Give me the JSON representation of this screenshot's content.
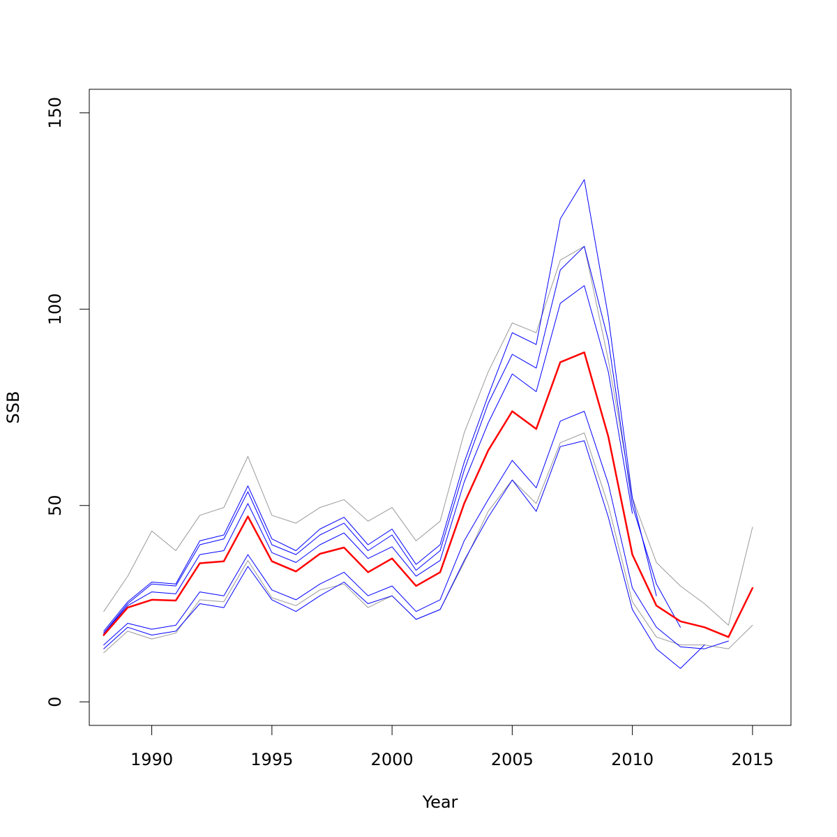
{
  "chart_data": {
    "type": "line",
    "title": "",
    "xlabel": "Year",
    "ylabel": "SSB",
    "xlim": [
      1987.4,
      2016.6
    ],
    "ylim": [
      -6,
      156
    ],
    "xticks": [
      1990,
      1995,
      2000,
      2005,
      2010,
      2015
    ],
    "yticks": [
      0,
      50,
      100,
      150
    ],
    "grid": false,
    "legend": "none",
    "series": [
      {
        "color": "#999999",
        "width": 1,
        "x": [
          1988,
          1989,
          1990,
          1991,
          1992,
          1993,
          1994,
          1995,
          1996,
          1997,
          1998,
          1999,
          2000,
          2001,
          2002,
          2003,
          2004,
          2005,
          2006,
          2007,
          2008,
          2009,
          2010,
          2011,
          2012,
          2013,
          2014,
          2015
        ],
        "y": [
          23,
          32,
          43.5,
          38.5,
          47.5,
          49.5,
          62.5,
          47.5,
          45.5,
          49.5,
          51.5,
          46,
          49.5,
          41,
          46,
          68.5,
          84,
          96.5,
          94,
          112.5,
          116,
          87,
          52,
          35.5,
          29.5,
          25,
          19.5,
          44.5
        ]
      },
      {
        "color": "#999999",
        "width": 1,
        "x": [
          1988,
          1989,
          1990,
          1991,
          1992,
          1993,
          1994,
          1995,
          1996,
          1997,
          1998,
          1999,
          2000,
          2001,
          2002,
          2003,
          2004,
          2005,
          2006,
          2007,
          2008,
          2009,
          2010,
          2011,
          2012,
          2013,
          2014,
          2015
        ],
        "y": [
          12.5,
          18,
          16,
          17.5,
          26,
          25.5,
          36,
          26.5,
          24.5,
          28.5,
          30,
          24,
          27,
          21,
          23.5,
          35.5,
          48.5,
          56.5,
          50.5,
          66,
          68.5,
          50,
          25.5,
          16.5,
          14.5,
          14.5,
          13.5,
          19.5
        ]
      },
      {
        "color": "#0000ff",
        "width": 1,
        "x": [
          1988,
          1989,
          1990,
          1991,
          1992,
          1993,
          1994,
          1995,
          1996,
          1997,
          1998,
          1999,
          2000,
          2001,
          2002,
          2003,
          2004,
          2005,
          2006,
          2007,
          2008,
          2009,
          2010,
          2011
        ],
        "y": [
          18,
          25.5,
          30.5,
          30,
          41,
          42.5,
          55,
          41.5,
          38.5,
          44,
          47,
          40,
          44,
          35,
          40,
          61,
          78,
          94,
          91,
          123,
          133,
          98,
          52,
          27
        ]
      },
      {
        "color": "#0000ff",
        "width": 1,
        "x": [
          1988,
          1989,
          1990,
          1991,
          1992,
          1993,
          1994,
          1995,
          1996,
          1997,
          1998,
          1999,
          2000,
          2001,
          2002,
          2003,
          2004,
          2005,
          2006,
          2007,
          2008,
          2009,
          2010,
          2011,
          2012
        ],
        "y": [
          17.5,
          25,
          30,
          29.5,
          40,
          41.5,
          53.5,
          40,
          37.5,
          42.5,
          45.5,
          38.5,
          42.5,
          33.5,
          38.5,
          59,
          76,
          88.5,
          85,
          110,
          116,
          92,
          50,
          30,
          19
        ]
      },
      {
        "color": "#0000ff",
        "width": 1,
        "x": [
          1988,
          1989,
          1990,
          1991,
          1992,
          1993,
          1994,
          1995,
          1996,
          1997,
          1998,
          1999,
          2000,
          2001,
          2002,
          2003,
          2004,
          2005,
          2006,
          2007,
          2008,
          2009,
          2010
        ],
        "y": [
          17.5,
          24.5,
          28,
          27.5,
          37.5,
          38.5,
          50.5,
          38,
          35.5,
          40,
          43,
          36.5,
          39.5,
          32,
          36,
          56,
          71,
          83.5,
          79,
          101.5,
          106,
          84,
          48
        ]
      },
      {
        "color": "#0000ff",
        "width": 1,
        "x": [
          1988,
          1989,
          1990,
          1991,
          1992,
          1993,
          1994,
          1995,
          1996,
          1997,
          1998,
          1999,
          2000,
          2001,
          2002,
          2003,
          2004,
          2005,
          2006,
          2007,
          2008,
          2009,
          2010,
          2011,
          2012,
          2013,
          2014
        ],
        "y": [
          14.5,
          20,
          18.5,
          19.5,
          28,
          27,
          37.5,
          28.5,
          26,
          30,
          33,
          27,
          29.5,
          23,
          26,
          41,
          51.5,
          61.5,
          54.5,
          71.5,
          74,
          55.5,
          29,
          19,
          14,
          13.5,
          15.5
        ]
      },
      {
        "color": "#0000ff",
        "width": 1,
        "x": [
          1988,
          1989,
          1990,
          1991,
          1992,
          1993,
          1994,
          1995,
          1996,
          1997,
          1998,
          1999,
          2000,
          2001,
          2002,
          2003,
          2004,
          2005,
          2006,
          2007,
          2008,
          2009,
          2010,
          2011,
          2012,
          2013
        ],
        "y": [
          13.5,
          19,
          17,
          18,
          25,
          24,
          34.5,
          26,
          23,
          27,
          30.5,
          25,
          27,
          21,
          23.5,
          36,
          47,
          56.5,
          48.5,
          65,
          66.5,
          47,
          23.5,
          13.5,
          8.5,
          14.5
        ]
      },
      {
        "color": "#ff0000",
        "width": 2.5,
        "x": [
          1988,
          1989,
          1990,
          1991,
          1992,
          1993,
          1994,
          1995,
          1996,
          1997,
          1998,
          1999,
          2000,
          2001,
          2002,
          2003,
          2004,
          2005,
          2006,
          2007,
          2008,
          2009,
          2010,
          2011,
          2012,
          2013,
          2014,
          2015
        ],
        "y": [
          17,
          24,
          26,
          25.8,
          35.3,
          35.8,
          47.2,
          35.8,
          33.2,
          37.7,
          39.3,
          33,
          36.5,
          29.5,
          33,
          50.5,
          64,
          74,
          69.5,
          86.5,
          89,
          67.5,
          37.5,
          24.5,
          20.5,
          19,
          16.5,
          29
        ]
      }
    ]
  }
}
